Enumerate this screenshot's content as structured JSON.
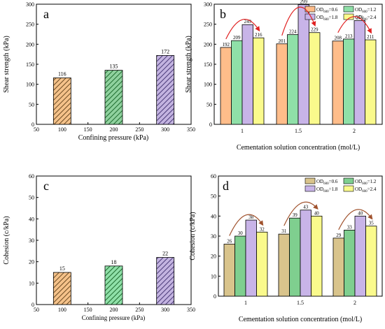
{
  "chart_data": [
    {
      "panel_label": "a",
      "type": "bar",
      "xlabel": "Confining pressure (kPa)",
      "ylabel": "Shear strength (kPa)",
      "xlim": [
        50,
        350
      ],
      "xticks": [
        50,
        100,
        150,
        200,
        250,
        300,
        350
      ],
      "ylim": [
        0,
        300
      ],
      "yticks": [
        0,
        50,
        100,
        150,
        200,
        250,
        300
      ],
      "bars": [
        {
          "x": 100,
          "value": 116,
          "label": "116",
          "color": "#f5c28a",
          "hatch": "#6b4a22"
        },
        {
          "x": 200,
          "value": 135,
          "label": "135",
          "color": "#8fd19e",
          "hatch": "#1e6b2e"
        },
        {
          "x": 300,
          "value": 172,
          "label": "172",
          "color": "#c3b3e0",
          "hatch": "#4a3a78"
        }
      ]
    },
    {
      "panel_label": "b",
      "type": "bar",
      "xlabel": "Cementation solution concentration (mol/L)",
      "ylabel": "Shear strength (kPa)",
      "categories": [
        "1",
        "1.5",
        "2"
      ],
      "ylim": [
        0,
        300
      ],
      "yticks": [
        0,
        50,
        100,
        150,
        200,
        250,
        300
      ],
      "legend_position": "top-right",
      "series": [
        {
          "name": "OD600=0.6",
          "legend_base": "OD",
          "legend_sub": "600",
          "legend_rest": "=0.6",
          "color": "#ffbd8a",
          "values": [
            192,
            201,
            208
          ],
          "labels": [
            "192",
            "201",
            "208"
          ]
        },
        {
          "name": "OD600=1.2",
          "legend_base": "OD",
          "legend_sub": "600",
          "legend_rest": "=1.2",
          "color": "#8fe0a8",
          "values": [
            209,
            224,
            213
          ],
          "labels": [
            "209",
            "224",
            "213"
          ]
        },
        {
          "name": "OD600=1.8",
          "legend_base": "OD",
          "legend_sub": "600",
          "legend_rest": "=1.8",
          "color": "#c8b4e8",
          "values": [
            249,
            299,
            259
          ],
          "labels": [
            "249",
            "299",
            "259"
          ]
        },
        {
          "name": "OD600=2.4",
          "legend_base": "OD",
          "legend_sub": "600",
          "legend_rest": "=2.4",
          "color": "#fafa8c",
          "values": [
            216,
            229,
            211
          ],
          "labels": [
            "216",
            "229",
            "211"
          ]
        }
      ],
      "annotation_color": "#e02020"
    },
    {
      "panel_label": "c",
      "type": "bar",
      "xlabel": "Confining pressure (kPa)",
      "ylabel": "Cohesion (c/kPa)",
      "xlim": [
        50,
        350
      ],
      "xticks": [
        50,
        100,
        150,
        200,
        250,
        300,
        350
      ],
      "ylim": [
        0,
        60
      ],
      "yticks": [
        0,
        10,
        20,
        30,
        40,
        50,
        60
      ],
      "bars": [
        {
          "x": 100,
          "value": 15,
          "label": "15",
          "color": "#f5c28a",
          "hatch": "#6b4a22"
        },
        {
          "x": 200,
          "value": 18,
          "label": "18",
          "color": "#8fe0a8",
          "hatch": "#1e6b2e"
        },
        {
          "x": 300,
          "value": 22,
          "label": "22",
          "color": "#c3b3e0",
          "hatch": "#4a3a78"
        }
      ]
    },
    {
      "panel_label": "d",
      "type": "bar",
      "xlabel": "Cementation solution concentration (mol/L)",
      "ylabel": "Cohesion (c/kPa)",
      "categories": [
        "1",
        "1.5",
        "2"
      ],
      "ylim": [
        0,
        60
      ],
      "yticks": [
        0,
        10,
        20,
        30,
        40,
        50,
        60
      ],
      "legend_position": "top-right",
      "series": [
        {
          "name": "OD600=0.6",
          "legend_base": "OD",
          "legend_sub": "600",
          "legend_rest": "=0.6",
          "color": "#d9c48c",
          "values": [
            26,
            31,
            29
          ],
          "labels": [
            "26",
            "31",
            "29"
          ]
        },
        {
          "name": "OD600=1.2",
          "legend_base": "OD",
          "legend_sub": "600",
          "legend_rest": "=1.2",
          "color": "#7fcf8f",
          "values": [
            30,
            39,
            33
          ],
          "labels": [
            "30",
            "39",
            "33"
          ]
        },
        {
          "name": "OD600=1.8",
          "legend_base": "OD",
          "legend_sub": "600",
          "legend_rest": "=1.8",
          "color": "#c8b4e8",
          "values": [
            38,
            43,
            40
          ],
          "labels": [
            "38",
            "43",
            "40"
          ]
        },
        {
          "name": "OD600=2.4",
          "legend_base": "OD",
          "legend_sub": "600",
          "legend_rest": "=2.4",
          "color": "#fafa8c",
          "values": [
            32,
            40,
            35
          ],
          "labels": [
            "32",
            "40",
            "35"
          ]
        }
      ],
      "annotation_color": "#a0522d"
    }
  ]
}
